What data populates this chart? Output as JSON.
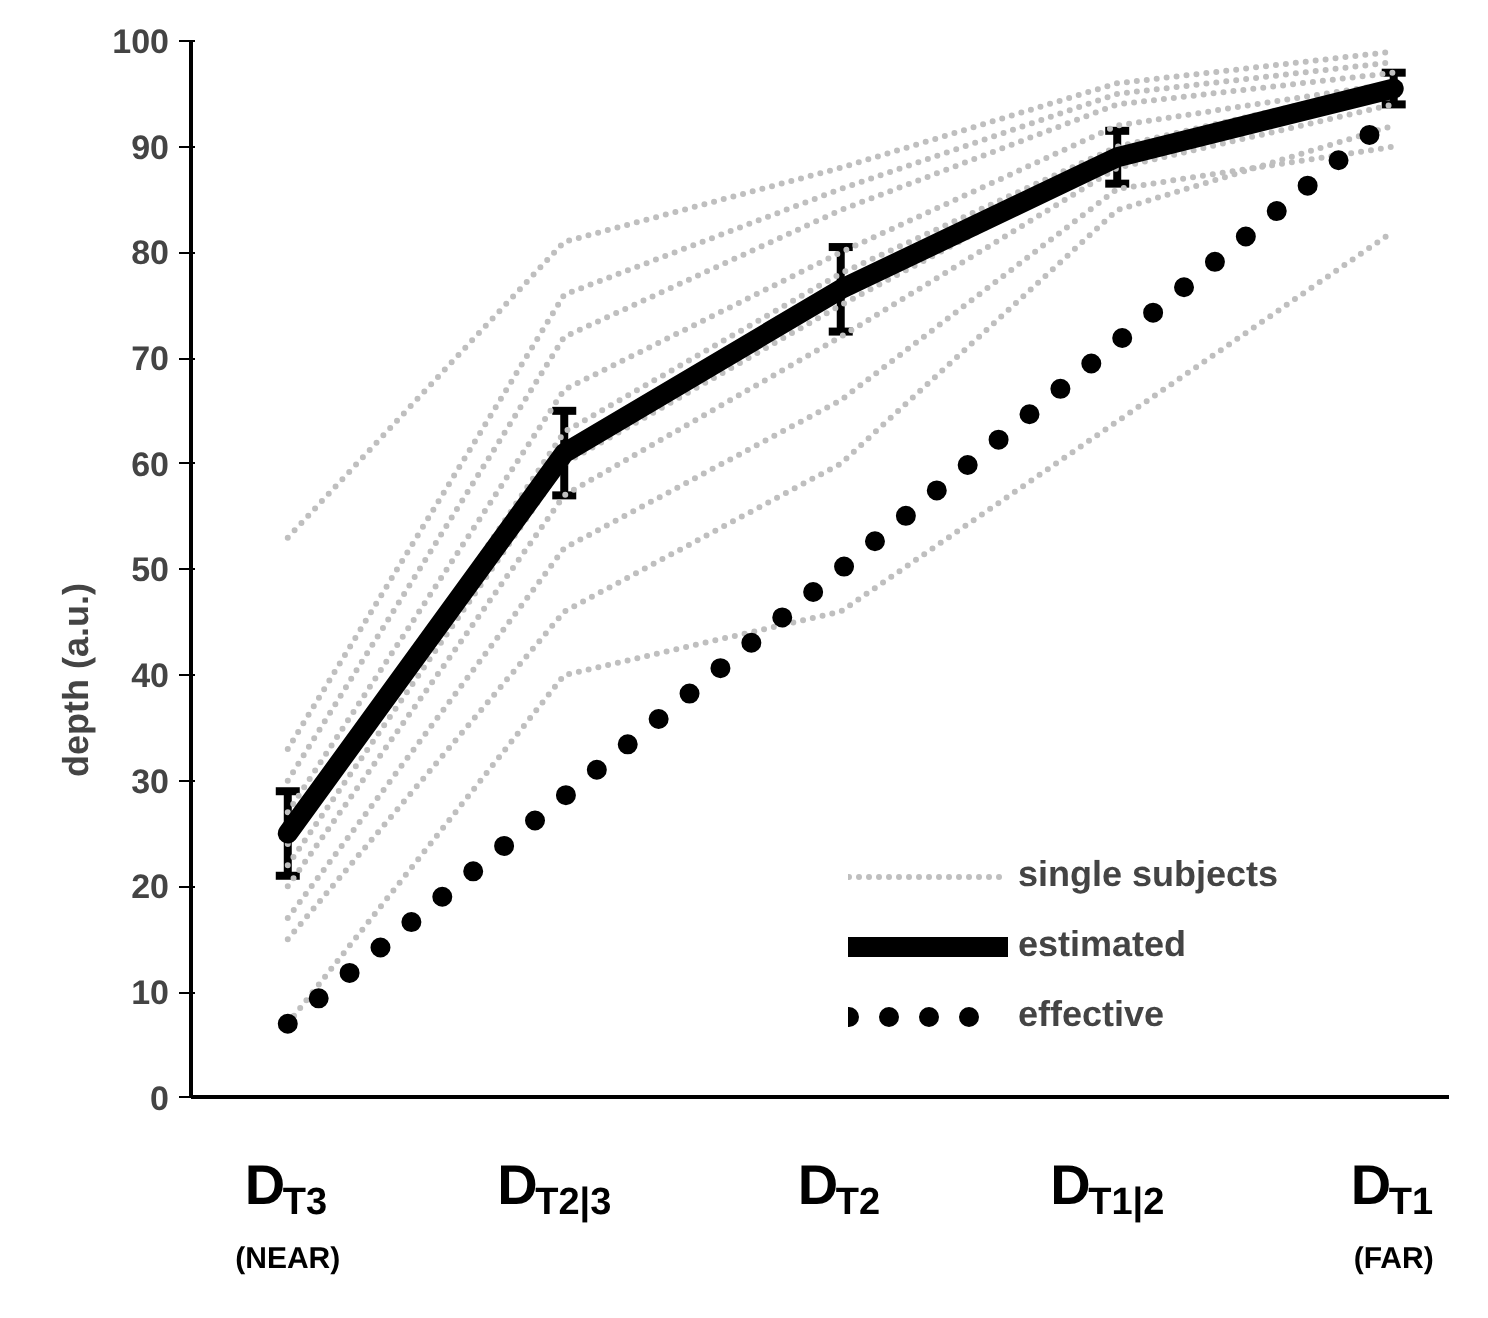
{
  "chart_data": {
    "type": "line",
    "ylabel": "depth  (a.u.)",
    "categories": [
      "D$_{T3}$\n(NEAR)",
      "D$_{T2|3}$",
      "D$_{T2}$",
      "D$_{T1|2}$",
      "D$_{T1}$\n(FAR)"
    ],
    "ylim": [
      0,
      100
    ],
    "yticks": [
      0,
      10,
      20,
      30,
      40,
      50,
      60,
      70,
      80,
      90,
      100
    ],
    "grid": false,
    "legend": "bottom right",
    "marker": "none",
    "series": [
      {
        "name": "single subjects",
        "color": "#bfbfbf",
        "line_style": "dotted",
        "values": [
          53,
          81,
          88,
          96,
          99
        ]
      },
      {
        "color": "#bfbfbf",
        "line_style": "dotted",
        "values": [
          33,
          76,
          86,
          95,
          98
        ]
      },
      {
        "color": "#bfbfbf",
        "line_style": "dotted",
        "values": [
          30,
          72,
          84,
          94,
          97
        ]
      },
      {
        "color": "#bfbfbf",
        "line_style": "dotted",
        "values": [
          27,
          67,
          80,
          92,
          96
        ]
      },
      {
        "color": "#bfbfbf",
        "line_style": "dotted",
        "values": [
          24,
          63,
          78,
          90,
          96
        ]
      },
      {
        "color": "#bfbfbf",
        "line_style": "dotted",
        "values": [
          22,
          60,
          75,
          89,
          95
        ]
      },
      {
        "color": "#bfbfbf",
        "line_style": "dotted",
        "values": [
          20,
          57,
          72,
          88,
          94
        ]
      },
      {
        "color": "#bfbfbf",
        "line_style": "dotted",
        "values": [
          17,
          52,
          66,
          86,
          90
        ]
      },
      {
        "color": "#bfbfbf",
        "line_style": "dotted",
        "values": [
          15,
          46,
          60,
          84,
          92
        ]
      },
      {
        "color": "#bfbfbf",
        "line_style": "dotted",
        "values": [
          7,
          40,
          46,
          64,
          82
        ]
      },
      {
        "name": "estimated",
        "color": "#000000",
        "line_style": "solid",
        "values": [
          25,
          61,
          76.5,
          89,
          95.5
        ],
        "errors": [
          4,
          4,
          4,
          2.5,
          1.5
        ]
      },
      {
        "name": "effective",
        "color": "#000000",
        "line_style": "dotted",
        "values": [
          7,
          28.5,
          50,
          71.5,
          93
        ]
      }
    ]
  }
}
